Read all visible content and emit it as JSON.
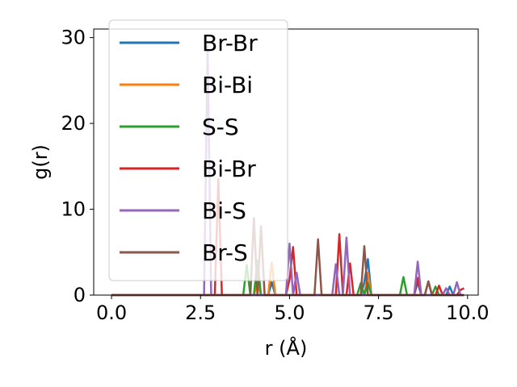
{
  "chart_data": {
    "type": "line",
    "title": "",
    "xlabel": "r (Å)",
    "ylabel": "g(r)",
    "xlim": [
      -0.5,
      10.3
    ],
    "ylim": [
      0,
      31
    ],
    "xticks": [
      0.0,
      2.5,
      5.0,
      7.5,
      10.0
    ],
    "xtick_labels": [
      "0.0",
      "2.5",
      "5.0",
      "7.5",
      "10.0"
    ],
    "yticks": [
      0,
      10,
      20,
      30
    ],
    "ytick_labels": [
      "0",
      "10",
      "20",
      "30"
    ],
    "legend_position": "top-left",
    "grid": false,
    "series": [
      {
        "name": "Br-Br",
        "color": "#1f77b4",
        "points": [
          [
            0,
            0
          ],
          [
            4.4,
            0
          ],
          [
            4.5,
            1.5
          ],
          [
            4.6,
            0
          ],
          [
            7.0,
            0
          ],
          [
            7.1,
            1.5
          ],
          [
            7.2,
            4.2
          ],
          [
            7.3,
            0
          ],
          [
            8.5,
            0
          ],
          [
            8.6,
            1.5
          ],
          [
            8.7,
            0
          ],
          [
            9.4,
            0
          ],
          [
            9.5,
            1.0
          ],
          [
            9.6,
            0
          ],
          [
            9.9,
            0
          ]
        ]
      },
      {
        "name": "Bi-Bi",
        "color": "#ff7f0e",
        "points": [
          [
            0,
            0
          ],
          [
            4.0,
            0
          ],
          [
            4.1,
            1.5
          ],
          [
            4.2,
            0
          ],
          [
            4.4,
            0
          ],
          [
            4.5,
            3.8
          ],
          [
            4.6,
            0
          ],
          [
            7.1,
            0
          ],
          [
            7.2,
            2.6
          ],
          [
            7.3,
            0
          ],
          [
            9.9,
            0
          ]
        ]
      },
      {
        "name": "S-S",
        "color": "#2ca02c",
        "points": [
          [
            0,
            0
          ],
          [
            3.7,
            0
          ],
          [
            3.8,
            3.5
          ],
          [
            3.9,
            0
          ],
          [
            4.0,
            0
          ],
          [
            4.1,
            4.0
          ],
          [
            4.2,
            0
          ],
          [
            6.9,
            0
          ],
          [
            7.0,
            1.4
          ],
          [
            7.1,
            0
          ],
          [
            7.2,
            1.4
          ],
          [
            7.3,
            0
          ],
          [
            8.1,
            0
          ],
          [
            8.2,
            2.1
          ],
          [
            8.3,
            0
          ],
          [
            9.0,
            0
          ],
          [
            9.1,
            1.0
          ],
          [
            9.2,
            0
          ],
          [
            9.9,
            0
          ]
        ]
      },
      {
        "name": "Bi-Br",
        "color": "#d62728",
        "points": [
          [
            0,
            0
          ],
          [
            2.9,
            0
          ],
          [
            3.0,
            13.5
          ],
          [
            3.1,
            0
          ],
          [
            4.9,
            0
          ],
          [
            5.0,
            1.8
          ],
          [
            5.1,
            5.6
          ],
          [
            5.2,
            0
          ],
          [
            6.3,
            0
          ],
          [
            6.4,
            7.1
          ],
          [
            6.5,
            0
          ],
          [
            6.6,
            0
          ],
          [
            6.7,
            3.7
          ],
          [
            6.8,
            0
          ],
          [
            8.5,
            0
          ],
          [
            8.6,
            2.0
          ],
          [
            8.7,
            0
          ],
          [
            8.8,
            0
          ],
          [
            8.9,
            1.6
          ],
          [
            9.0,
            0
          ],
          [
            9.1,
            0
          ],
          [
            9.2,
            1.1
          ],
          [
            9.3,
            0
          ],
          [
            9.7,
            0
          ],
          [
            9.8,
            0.6
          ],
          [
            9.9,
            0.8
          ]
        ]
      },
      {
        "name": "Bi-S",
        "color": "#9467bd",
        "points": [
          [
            0,
            0
          ],
          [
            2.6,
            0
          ],
          [
            2.7,
            29.0
          ],
          [
            2.8,
            0
          ],
          [
            4.9,
            0
          ],
          [
            5.0,
            6.0
          ],
          [
            5.1,
            0
          ],
          [
            5.2,
            2.6
          ],
          [
            5.3,
            0
          ],
          [
            6.2,
            0
          ],
          [
            6.3,
            3.6
          ],
          [
            6.4,
            0
          ],
          [
            6.5,
            0
          ],
          [
            6.6,
            6.7
          ],
          [
            6.7,
            0
          ],
          [
            8.5,
            0
          ],
          [
            8.6,
            3.9
          ],
          [
            8.7,
            0
          ],
          [
            9.3,
            0
          ],
          [
            9.4,
            0.8
          ],
          [
            9.5,
            0
          ],
          [
            9.6,
            0
          ],
          [
            9.7,
            1.5
          ],
          [
            9.8,
            0
          ],
          [
            9.9,
            0
          ]
        ]
      },
      {
        "name": "Br-S",
        "color": "#8c564b",
        "points": [
          [
            0,
            0
          ],
          [
            3.9,
            0
          ],
          [
            4.0,
            9.0
          ],
          [
            4.1,
            0
          ],
          [
            4.2,
            8.0
          ],
          [
            4.3,
            0
          ],
          [
            5.7,
            0
          ],
          [
            5.8,
            6.5
          ],
          [
            5.9,
            0
          ],
          [
            7.0,
            0
          ],
          [
            7.1,
            5.7
          ],
          [
            7.2,
            0
          ],
          [
            8.8,
            0
          ],
          [
            8.9,
            1.6
          ],
          [
            9.0,
            0
          ],
          [
            9.9,
            0
          ]
        ]
      }
    ]
  }
}
